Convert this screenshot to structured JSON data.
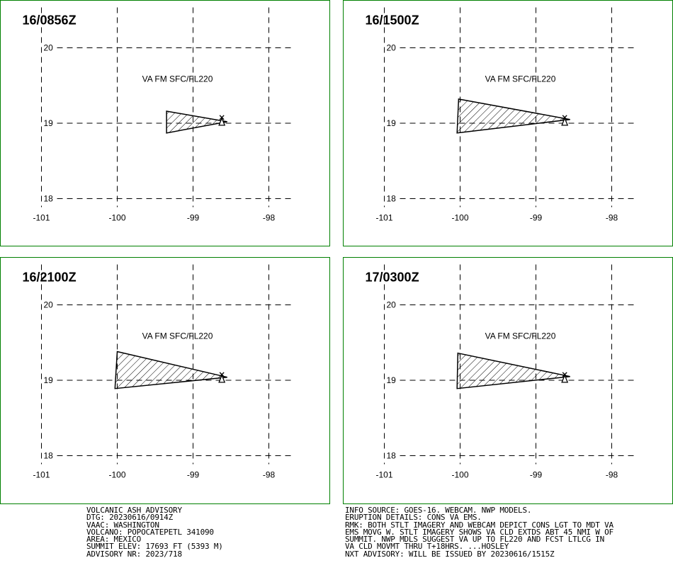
{
  "map_panels": [
    {
      "time_label": "16/0856Z",
      "level_label": "VA FM SFC/FL220",
      "polygon": [
        [
          -99.35,
          19.16
        ],
        [
          -98.55,
          19.02
        ],
        [
          -99.35,
          18.87
        ]
      ],
      "volcano": [
        -98.62,
        19.02
      ]
    },
    {
      "time_label": "16/1500Z",
      "level_label": "VA FM SFC/FL220",
      "polygon": [
        [
          -100.02,
          19.32
        ],
        [
          -98.55,
          19.05
        ],
        [
          -100.04,
          18.87
        ]
      ],
      "volcano": [
        -98.62,
        19.02
      ]
    },
    {
      "time_label": "16/2100Z",
      "level_label": "VA FM SFC/FL220",
      "polygon": [
        [
          -100.0,
          19.38
        ],
        [
          -98.55,
          19.04
        ],
        [
          -100.03,
          18.89
        ]
      ],
      "volcano": [
        -98.62,
        19.02
      ]
    },
    {
      "time_label": "17/0300Z",
      "level_label": "VA FM SFC/FL220",
      "polygon": [
        [
          -100.03,
          19.36
        ],
        [
          -98.55,
          19.05
        ],
        [
          -100.04,
          18.89
        ]
      ],
      "volcano": [
        -98.62,
        19.02
      ]
    }
  ],
  "map_grid": {
    "lon_ticks": [
      -101,
      -100,
      -99,
      -98
    ],
    "lat_ticks": [
      20,
      19,
      18
    ],
    "lon_tick_labels": [
      "-101",
      "-100",
      "-99",
      "-98"
    ],
    "lat_tick_labels": [
      "20",
      "19",
      "18"
    ]
  },
  "colors": {
    "border": "#008000",
    "lines": "#000000",
    "background": "#ffffff"
  },
  "advisory_left": [
    "VOLCANIC ASH ADVISORY",
    "DTG: 20230616/0914Z",
    "VAAC: WASHINGTON",
    "VOLCANO: POPOCATEPETL 341090",
    "AREA: MEXICO",
    "SUMMIT ELEV: 17693 FT (5393 M)",
    "ADVISORY NR: 2023/718"
  ],
  "advisory_right": [
    "INFO SOURCE: GOES-16. WEBCAM. NWP MODELS.",
    "ERUPTION DETAILS: CONS VA EMS.",
    "RMK: BOTH STLT IMAGERY AND WEBCAM DEPICT CONS LGT TO MDT VA",
    "EMS MOVG W. STLT IMAGERY SHOWS VA CLD EXTDS ABT 45 NMI W OF",
    "SUMMIT. NWP MDLS SUGGEST VA UP TO FL220 AND FCST LTLCG IN",
    "VA CLD MOVMT THRU T+18HRS. ...HOSLEY",
    "NXT ADVISORY: WILL BE ISSUED BY 20230616/1515Z"
  ]
}
